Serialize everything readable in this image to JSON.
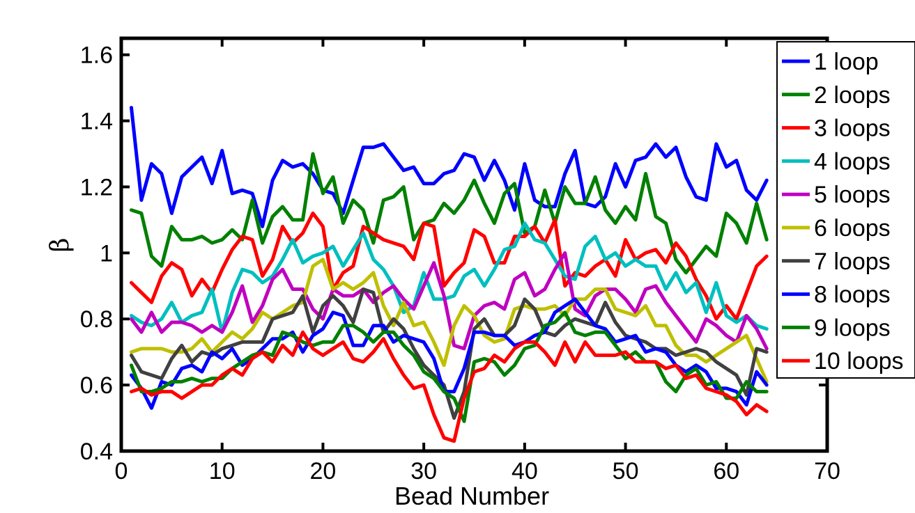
{
  "chart_data": {
    "type": "line",
    "xlabel": "Bead Number",
    "ylabel": "β",
    "xlim": [
      0,
      70
    ],
    "ylim": [
      0.4,
      1.65
    ],
    "xticks": [
      "0",
      "10",
      "20",
      "30",
      "40",
      "50",
      "60",
      "70"
    ],
    "yticks": [
      "0.4",
      "0.6",
      "0.8",
      "1",
      "1.2",
      "1.4",
      "1.6"
    ],
    "legend_position": "top-right",
    "grid": false,
    "x": [
      1,
      2,
      3,
      4,
      5,
      6,
      7,
      8,
      9,
      10,
      11,
      12,
      13,
      14,
      15,
      16,
      17,
      18,
      19,
      20,
      21,
      22,
      23,
      24,
      25,
      26,
      27,
      28,
      29,
      30,
      31,
      32,
      33,
      34,
      35,
      36,
      37,
      38,
      39,
      40,
      41,
      42,
      43,
      44,
      45,
      46,
      47,
      48,
      49,
      50,
      51,
      52,
      53,
      54,
      55,
      56,
      57,
      58,
      59,
      60,
      61,
      62,
      63,
      64
    ],
    "series": [
      {
        "name": "1 loop",
        "color": "#0000ff",
        "values": [
          1.44,
          1.16,
          1.27,
          1.24,
          1.12,
          1.23,
          1.26,
          1.29,
          1.21,
          1.31,
          1.18,
          1.19,
          1.18,
          1.08,
          1.22,
          1.28,
          1.26,
          1.27,
          1.24,
          1.19,
          1.18,
          1.12,
          1.22,
          1.32,
          1.32,
          1.33,
          1.29,
          1.25,
          1.26,
          1.21,
          1.21,
          1.24,
          1.25,
          1.3,
          1.29,
          1.22,
          1.28,
          1.22,
          1.13,
          1.27,
          1.16,
          1.14,
          1.14,
          1.24,
          1.31,
          1.15,
          1.14,
          1.17,
          1.27,
          1.2,
          1.28,
          1.29,
          1.33,
          1.29,
          1.32,
          1.23,
          1.17,
          1.16,
          1.33,
          1.26,
          1.28,
          1.19,
          1.16,
          1.22
        ]
      },
      {
        "name": "2 loops",
        "color": "#008000",
        "values": [
          1.13,
          1.12,
          0.99,
          0.96,
          1.08,
          1.04,
          1.04,
          1.05,
          1.03,
          1.04,
          1.07,
          1.04,
          1.16,
          1.03,
          1.11,
          1.14,
          1.1,
          1.1,
          1.3,
          1.18,
          1.23,
          1.09,
          1.16,
          1.13,
          1.03,
          1.16,
          1.17,
          1.2,
          1.04,
          1.09,
          1.1,
          1.15,
          1.12,
          1.16,
          1.22,
          1.15,
          1.09,
          1.18,
          1.21,
          1.06,
          1.08,
          1.19,
          1.09,
          1.2,
          1.15,
          1.15,
          1.23,
          1.13,
          1.09,
          1.14,
          1.1,
          1.24,
          1.11,
          1.09,
          0.98,
          0.94,
          0.98,
          1.02,
          0.99,
          1.12,
          1.09,
          1.03,
          1.15,
          1.04
        ]
      },
      {
        "name": "3 loops",
        "color": "#ff0000",
        "values": [
          0.91,
          0.88,
          0.85,
          0.93,
          0.97,
          0.95,
          0.87,
          0.92,
          0.88,
          0.95,
          1.01,
          1.05,
          1.04,
          0.93,
          0.98,
          1.08,
          1.03,
          1.06,
          1.12,
          1.08,
          0.89,
          0.94,
          0.96,
          1.08,
          1.06,
          1.04,
          1.03,
          1.02,
          0.98,
          1.09,
          1.08,
          0.9,
          0.94,
          0.97,
          1.07,
          1.05,
          0.97,
          0.97,
          1.05,
          1.05,
          1.08,
          1.03,
          1.1,
          0.9,
          0.94,
          0.93,
          0.96,
          0.98,
          0.93,
          1.04,
          0.98,
          1.0,
          1.01,
          0.97,
          1.03,
          0.99,
          0.92,
          0.87,
          0.8,
          0.84,
          0.8,
          0.88,
          0.96,
          0.99
        ]
      },
      {
        "name": "4 loops",
        "color": "#00bfbf",
        "values": [
          0.81,
          0.79,
          0.78,
          0.8,
          0.85,
          0.79,
          0.81,
          0.82,
          0.89,
          0.76,
          0.88,
          0.95,
          0.94,
          0.91,
          0.93,
          0.98,
          1.04,
          0.97,
          0.99,
          1.0,
          1.02,
          0.96,
          1.01,
          1.06,
          0.98,
          0.95,
          0.9,
          0.82,
          0.84,
          0.94,
          0.86,
          0.86,
          0.87,
          0.93,
          0.95,
          0.9,
          0.95,
          1.01,
          1.02,
          1.09,
          1.04,
          1.03,
          0.98,
          0.93,
          0.92,
          1.02,
          1.05,
          0.98,
          1.0,
          0.96,
          0.98,
          0.96,
          0.96,
          0.89,
          0.94,
          0.88,
          0.91,
          0.82,
          0.91,
          0.81,
          0.79,
          0.81,
          0.78,
          0.77
        ]
      },
      {
        "name": "5 loops",
        "color": "#bf00bf",
        "values": [
          0.8,
          0.76,
          0.82,
          0.76,
          0.79,
          0.79,
          0.78,
          0.76,
          0.78,
          0.76,
          0.82,
          0.9,
          0.79,
          0.84,
          0.92,
          0.95,
          0.89,
          0.89,
          0.83,
          0.8,
          0.89,
          0.87,
          0.87,
          0.89,
          0.85,
          0.88,
          0.9,
          0.86,
          0.83,
          0.9,
          0.97,
          0.87,
          0.72,
          0.71,
          0.81,
          0.84,
          0.85,
          0.83,
          0.92,
          0.94,
          0.87,
          0.89,
          0.95,
          1.0,
          0.83,
          0.81,
          0.87,
          0.89,
          0.89,
          0.86,
          0.82,
          0.89,
          0.9,
          0.85,
          0.81,
          0.77,
          0.73,
          0.8,
          0.78,
          0.75,
          0.73,
          0.81,
          0.77,
          0.71
        ]
      },
      {
        "name": "6 loops",
        "color": "#bfbf00",
        "values": [
          0.7,
          0.71,
          0.71,
          0.71,
          0.7,
          0.7,
          0.71,
          0.74,
          0.7,
          0.73,
          0.76,
          0.74,
          0.77,
          0.82,
          0.8,
          0.82,
          0.84,
          0.85,
          0.96,
          0.98,
          0.89,
          0.91,
          0.89,
          0.91,
          0.94,
          0.84,
          0.78,
          0.85,
          0.78,
          0.79,
          0.73,
          0.66,
          0.78,
          0.84,
          0.81,
          0.75,
          0.73,
          0.74,
          0.83,
          0.84,
          0.83,
          0.83,
          0.84,
          0.81,
          0.86,
          0.86,
          0.89,
          0.89,
          0.83,
          0.82,
          0.81,
          0.84,
          0.78,
          0.78,
          0.72,
          0.69,
          0.69,
          0.67,
          0.69,
          0.71,
          0.73,
          0.75,
          0.68,
          0.61
        ]
      },
      {
        "name": "7 loops",
        "color": "#404040",
        "values": [
          0.69,
          0.64,
          0.63,
          0.62,
          0.68,
          0.72,
          0.67,
          0.7,
          0.69,
          0.71,
          0.72,
          0.73,
          0.73,
          0.73,
          0.8,
          0.81,
          0.82,
          0.87,
          0.76,
          0.84,
          0.87,
          0.84,
          0.79,
          0.89,
          0.88,
          0.76,
          0.8,
          0.77,
          0.71,
          0.66,
          0.63,
          0.6,
          0.5,
          0.58,
          0.77,
          0.8,
          0.75,
          0.75,
          0.78,
          0.86,
          0.83,
          0.76,
          0.75,
          0.78,
          0.8,
          0.79,
          0.78,
          0.85,
          0.79,
          0.75,
          0.74,
          0.73,
          0.71,
          0.71,
          0.69,
          0.7,
          0.71,
          0.7,
          0.67,
          0.65,
          0.63,
          0.57,
          0.71,
          0.7
        ]
      },
      {
        "name": "8 loops",
        "color": "#0000ff",
        "values": [
          0.63,
          0.59,
          0.53,
          0.61,
          0.6,
          0.65,
          0.66,
          0.64,
          0.7,
          0.68,
          0.71,
          0.66,
          0.68,
          0.71,
          0.74,
          0.74,
          0.76,
          0.7,
          0.75,
          0.77,
          0.82,
          0.81,
          0.72,
          0.72,
          0.78,
          0.78,
          0.73,
          0.75,
          0.74,
          0.73,
          0.68,
          0.58,
          0.58,
          0.65,
          0.76,
          0.76,
          0.75,
          0.75,
          0.72,
          0.73,
          0.75,
          0.76,
          0.82,
          0.84,
          0.86,
          0.82,
          0.78,
          0.77,
          0.73,
          0.74,
          0.75,
          0.7,
          0.71,
          0.7,
          0.66,
          0.64,
          0.66,
          0.64,
          0.59,
          0.59,
          0.58,
          0.54,
          0.64,
          0.6
        ]
      },
      {
        "name": "9 loops",
        "color": "#008000",
        "values": [
          0.66,
          0.58,
          0.58,
          0.59,
          0.61,
          0.61,
          0.62,
          0.61,
          0.62,
          0.62,
          0.65,
          0.67,
          0.69,
          0.7,
          0.69,
          0.76,
          0.75,
          0.73,
          0.72,
          0.73,
          0.73,
          0.78,
          0.78,
          0.76,
          0.73,
          0.76,
          0.76,
          0.72,
          0.69,
          0.64,
          0.62,
          0.58,
          0.56,
          0.49,
          0.67,
          0.68,
          0.67,
          0.63,
          0.66,
          0.71,
          0.72,
          0.78,
          0.79,
          0.82,
          0.76,
          0.75,
          0.76,
          0.76,
          0.72,
          0.68,
          0.7,
          0.67,
          0.67,
          0.61,
          0.58,
          0.63,
          0.65,
          0.6,
          0.61,
          0.56,
          0.56,
          0.61,
          0.58,
          0.58
        ]
      },
      {
        "name": "10 loops",
        "color": "#ff0000",
        "values": [
          0.58,
          0.59,
          0.57,
          0.58,
          0.58,
          0.56,
          0.58,
          0.6,
          0.6,
          0.63,
          0.65,
          0.63,
          0.68,
          0.7,
          0.67,
          0.72,
          0.69,
          0.76,
          0.71,
          0.69,
          0.71,
          0.73,
          0.68,
          0.67,
          0.7,
          0.74,
          0.68,
          0.63,
          0.59,
          0.6,
          0.51,
          0.44,
          0.43,
          0.56,
          0.64,
          0.65,
          0.69,
          0.67,
          0.71,
          0.73,
          0.73,
          0.7,
          0.66,
          0.73,
          0.67,
          0.73,
          0.69,
          0.69,
          0.69,
          0.7,
          0.67,
          0.67,
          0.67,
          0.65,
          0.66,
          0.62,
          0.63,
          0.59,
          0.58,
          0.57,
          0.55,
          0.51,
          0.54,
          0.52
        ]
      }
    ]
  }
}
